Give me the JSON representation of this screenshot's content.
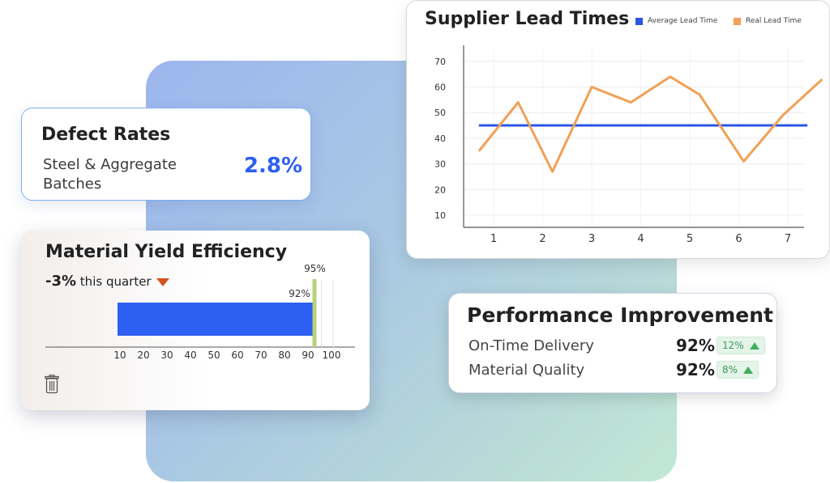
{
  "defect": {
    "title": "Defect Rates",
    "subtitle": "Steel & Aggregate Batches",
    "value": "2.8%"
  },
  "yield": {
    "title": "Material Yield Efficiency",
    "delta_value": "-3%",
    "delta_text": " this quarter",
    "trash_icon": "trash-icon"
  },
  "supplier": {
    "title": "Supplier Lead Times",
    "legend": [
      {
        "label": "Average Lead Time",
        "color": "#2b55e6"
      },
      {
        "label": "Real Lead Time",
        "color": "#f2a055"
      }
    ]
  },
  "perf": {
    "title": "Performance Improvement",
    "rows": [
      {
        "label": "On-Time Delivery",
        "value": "92%",
        "change": "12%"
      },
      {
        "label": "Material Quality",
        "value": "92%",
        "change": "8%"
      }
    ]
  },
  "chart_data": [
    {
      "type": "line",
      "title": "Supplier Lead Times",
      "x": [
        1,
        2,
        3,
        4,
        5,
        6,
        7
      ],
      "x_ticks": [
        "1",
        "2",
        "3",
        "4",
        "5",
        "6",
        "7"
      ],
      "y_ticks": [
        "10",
        "20",
        "30",
        "40",
        "50",
        "60",
        "70"
      ],
      "ylim": [
        10,
        70
      ],
      "grid": true,
      "legend_position": "top-right",
      "series": [
        {
          "name": "Average Lead Time",
          "color": "#2b55e6",
          "points": [
            [
              0.7,
              45
            ],
            [
              7.4,
              45
            ]
          ]
        },
        {
          "name": "Real Lead Time",
          "color": "#f2a055",
          "points": [
            [
              0.7,
              35
            ],
            [
              1.5,
              54
            ],
            [
              2.2,
              27
            ],
            [
              3.0,
              60
            ],
            [
              3.8,
              54
            ],
            [
              4.6,
              64
            ],
            [
              5.2,
              57
            ],
            [
              6.1,
              31
            ],
            [
              6.9,
              49
            ],
            [
              7.7,
              63
            ]
          ]
        }
      ]
    },
    {
      "type": "bar",
      "title": "Material Yield Efficiency",
      "orientation": "horizontal",
      "values": [
        92
      ],
      "value_labels": [
        "92%"
      ],
      "target": 95,
      "target_label": "95%",
      "x_ticks": [
        "10",
        "20",
        "30",
        "40",
        "50",
        "60",
        "70",
        "80",
        "90",
        "100"
      ],
      "xlim": [
        10,
        100
      ],
      "bar_color": "#2d5ff2",
      "target_color": "#b4d27a"
    }
  ]
}
